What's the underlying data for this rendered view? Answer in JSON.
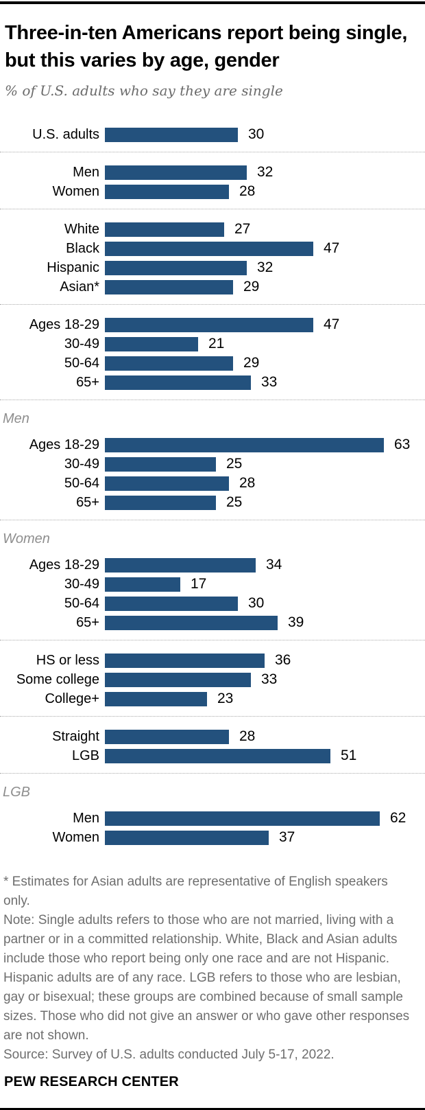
{
  "header": {
    "title": "Three-in-ten Americans report being single, but this varies by age, gender",
    "subtitle": "% of U.S. adults who say they are single"
  },
  "chart_data": {
    "type": "bar",
    "orientation": "horizontal",
    "unit": "%",
    "bar_color": "#23517D",
    "xlim": [
      0,
      70
    ],
    "value_labels_shown": true,
    "axes_shown": false,
    "groups": [
      {
        "header": "",
        "rows": [
          {
            "label": "U.S. adults",
            "value": 30
          }
        ]
      },
      {
        "header": "",
        "rows": [
          {
            "label": "Men",
            "value": 32
          },
          {
            "label": "Women",
            "value": 28
          }
        ]
      },
      {
        "header": "",
        "rows": [
          {
            "label": "White",
            "value": 27
          },
          {
            "label": "Black",
            "value": 47
          },
          {
            "label": "Hispanic",
            "value": 32
          },
          {
            "label": "Asian*",
            "value": 29
          }
        ]
      },
      {
        "header": "",
        "rows": [
          {
            "label": "Ages 18-29",
            "value": 47
          },
          {
            "label": "30-49",
            "value": 21
          },
          {
            "label": "50-64",
            "value": 29
          },
          {
            "label": "65+",
            "value": 33
          }
        ]
      },
      {
        "header": "Men",
        "rows": [
          {
            "label": "Ages 18-29",
            "value": 63
          },
          {
            "label": "30-49",
            "value": 25
          },
          {
            "label": "50-64",
            "value": 28
          },
          {
            "label": "65+",
            "value": 25
          }
        ]
      },
      {
        "header": "Women",
        "rows": [
          {
            "label": "Ages 18-29",
            "value": 34
          },
          {
            "label": "30-49",
            "value": 17
          },
          {
            "label": "50-64",
            "value": 30
          },
          {
            "label": "65+",
            "value": 39
          }
        ]
      },
      {
        "header": "",
        "rows": [
          {
            "label": "HS or less",
            "value": 36
          },
          {
            "label": "Some college",
            "value": 33
          },
          {
            "label": "College+",
            "value": 23
          }
        ]
      },
      {
        "header": "",
        "rows": [
          {
            "label": "Straight",
            "value": 28
          },
          {
            "label": "LGB",
            "value": 51
          }
        ]
      },
      {
        "header": "LGB",
        "rows": [
          {
            "label": "Men",
            "value": 62
          },
          {
            "label": "Women",
            "value": 37
          }
        ]
      }
    ]
  },
  "footer": {
    "asterisk_note": "* Estimates for Asian adults are representative of English speakers only.",
    "note": "Note: Single adults refers to those who are not married, living with a partner or in a committed relationship. White, Black and Asian adults include those who report being only one race and are not Hispanic. Hispanic adults are of any race. LGB refers to those who are lesbian, gay or bisexual; these groups are combined because of small sample sizes. Those who did not give an answer or who gave other responses are not shown.",
    "source": "Source: Survey of U.S. adults conducted July 5-17, 2022.",
    "brand": "PEW RESEARCH CENTER"
  }
}
